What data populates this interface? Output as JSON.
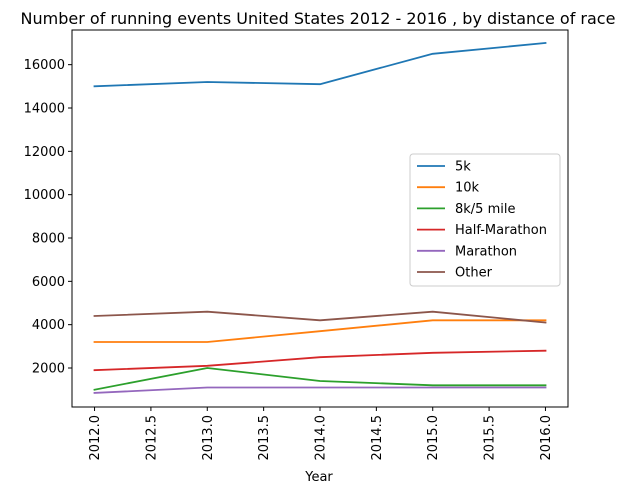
{
  "chart_data": {
    "type": "line",
    "title": "Number of running events United States 2012 - 2016 , by distance of race",
    "xlabel": "Year",
    "ylabel": "",
    "x": [
      2012,
      2013,
      2014,
      2015,
      2016
    ],
    "xlim": [
      2011.8,
      2016.2
    ],
    "ylim": [
      200,
      17600
    ],
    "x_ticks": [
      "2012.0",
      "2012.5",
      "2013.0",
      "2013.5",
      "2014.0",
      "2014.5",
      "2015.0",
      "2015.5",
      "2016.0"
    ],
    "y_ticks": [
      "2000",
      "4000",
      "6000",
      "8000",
      "10000",
      "12000",
      "14000",
      "16000"
    ],
    "grid": false,
    "legend_position": "center-right",
    "series": [
      {
        "name": "5k",
        "color": "#1f77b4",
        "values": [
          15000,
          15200,
          15100,
          16500,
          17000
        ]
      },
      {
        "name": "10k",
        "color": "#ff7f0e",
        "values": [
          3200,
          3200,
          3700,
          4200,
          4200
        ]
      },
      {
        "name": "8k/5 mile",
        "color": "#2ca02c",
        "values": [
          1000,
          2000,
          1400,
          1200,
          1200
        ]
      },
      {
        "name": "Half-Marathon",
        "color": "#d62728",
        "values": [
          1900,
          2100,
          2500,
          2700,
          2800
        ]
      },
      {
        "name": "Marathon",
        "color": "#9467bd",
        "values": [
          850,
          1100,
          1100,
          1100,
          1100
        ]
      },
      {
        "name": "Other",
        "color": "#8c564b",
        "values": [
          4400,
          4600,
          4200,
          4600,
          4100
        ]
      }
    ]
  }
}
